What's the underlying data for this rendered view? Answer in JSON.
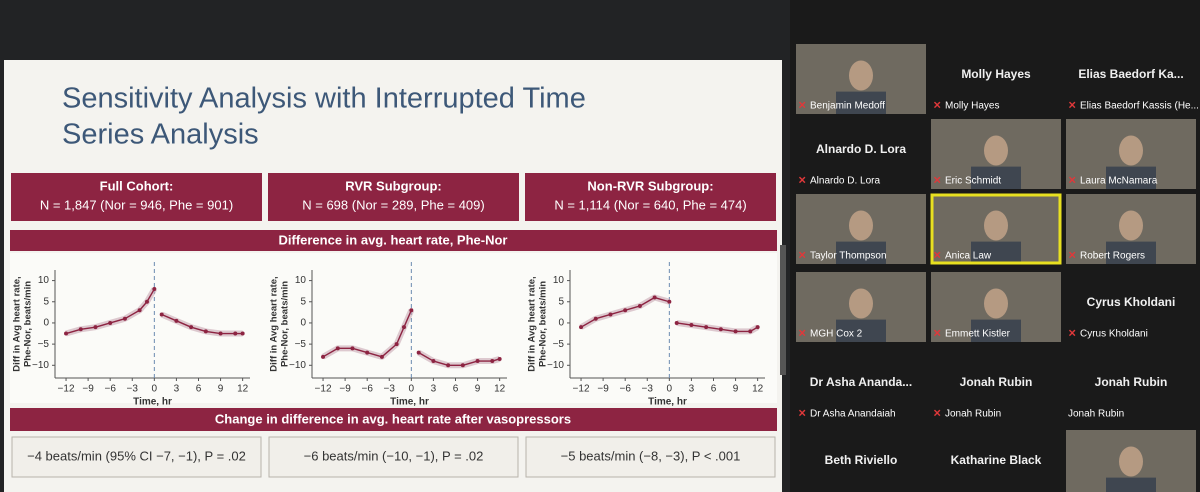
{
  "slide": {
    "title_lines": [
      "Sensitivity Analysis with Interrupted Time",
      "Series Analysis"
    ],
    "groups": [
      {
        "name": "Full Cohort:",
        "n": "N = 1,847 (Nor = 946, Phe = 901)"
      },
      {
        "name": "RVR Subgroup:",
        "n": "N = 698 (Nor = 289, Phe = 409)"
      },
      {
        "name": "Non-RVR Subgroup:",
        "n": "N = 1,114 (Nor = 640, Phe = 474)"
      }
    ],
    "difference_header": "Difference in avg. heart rate, Phe-Nor",
    "change_header": "Change in difference in avg. heart rate after vasopressors",
    "results": [
      "−4 beats/min (95% CI −7, −1), P = .02",
      "−6 beats/min (−10, −1), P = .02",
      "−5 beats/min (−8, −3), P < .001"
    ],
    "panels": [
      {
        "type": "scatter",
        "y_label": [
          "Diff in Avg heart rate,",
          "Phe-Nor, beats/min"
        ],
        "x_label": "Time, hr",
        "xlim": [
          -13.5,
          13
        ],
        "ylim": [
          -13,
          12.5
        ],
        "xticks": [
          {
            "value": -12,
            "label": "−12"
          },
          {
            "value": -9,
            "label": "−9"
          },
          {
            "value": -6,
            "label": "−6"
          },
          {
            "value": -3,
            "label": "−3"
          },
          0,
          3,
          6,
          9,
          12
        ],
        "yticks": [
          10,
          5,
          0,
          {
            "value": -5,
            "label": "−5"
          },
          {
            "value": -10,
            "label": "−10"
          }
        ],
        "pre": {
          "x": [
            -12,
            -10,
            -8,
            -6,
            -4,
            -2,
            -1,
            0
          ],
          "y": [
            -2.5,
            -1.5,
            -1,
            0,
            1,
            3,
            5,
            8
          ]
        },
        "post": {
          "x": [
            1,
            3,
            5,
            7,
            9,
            11,
            12
          ],
          "y": [
            2,
            0.5,
            -1,
            -2,
            -2.5,
            -2.5,
            -2.5
          ]
        }
      },
      {
        "type": "scatter",
        "y_label": [
          "Diff in Avg heart rate,",
          "Phe-Nor, beats/min"
        ],
        "x_label": "Time, hr",
        "xlim": [
          -13.5,
          13
        ],
        "ylim": [
          -13,
          12.5
        ],
        "xticks": [
          {
            "value": -12,
            "label": "−12"
          },
          {
            "value": -9,
            "label": "−9"
          },
          {
            "value": -6,
            "label": "−6"
          },
          {
            "value": -3,
            "label": "−3"
          },
          0,
          3,
          6,
          9,
          12
        ],
        "yticks": [
          10,
          5,
          0,
          {
            "value": -5,
            "label": "−5"
          },
          {
            "value": -10,
            "label": "−10"
          }
        ],
        "pre": {
          "x": [
            -12,
            -10,
            -8,
            -6,
            -4,
            -2,
            -1,
            0
          ],
          "y": [
            -8,
            -6,
            -6,
            -7,
            -8,
            -5,
            -1,
            3
          ]
        },
        "post": {
          "x": [
            1,
            3,
            5,
            7,
            9,
            11,
            12
          ],
          "y": [
            -7,
            -9,
            -10,
            -10,
            -9,
            -9,
            -8.5
          ]
        }
      },
      {
        "type": "scatter",
        "y_label": [
          "Diff in Avg heart rate,",
          "Phe-Nor, beats/min"
        ],
        "x_label": "Time, hr",
        "xlim": [
          -13.5,
          13
        ],
        "ylim": [
          -13,
          12.5
        ],
        "xticks": [
          {
            "value": -12,
            "label": "−12"
          },
          {
            "value": -9,
            "label": "−9"
          },
          {
            "value": -6,
            "label": "−6"
          },
          {
            "value": -3,
            "label": "−3"
          },
          0,
          3,
          6,
          9,
          12
        ],
        "yticks": [
          10,
          5,
          0,
          {
            "value": -5,
            "label": "−5"
          },
          {
            "value": -10,
            "label": "−10"
          }
        ],
        "pre": {
          "x": [
            -12,
            -10,
            -8,
            -6,
            -4,
            -2,
            0
          ],
          "y": [
            -1,
            1,
            2,
            3,
            4,
            6,
            5
          ]
        },
        "post": {
          "x": [
            1,
            3,
            5,
            7,
            9,
            11,
            12
          ],
          "y": [
            0,
            -0.5,
            -1,
            -1.5,
            -2,
            -2,
            -1
          ]
        }
      }
    ]
  },
  "participants": [
    {
      "label": "Benjamin Medoff",
      "video": true
    },
    {
      "big": "Molly Hayes",
      "label": "Molly Hayes"
    },
    {
      "big": "Elias Baedorf Ka...",
      "label": "Elias Baedorf Kassis (He..."
    },
    {
      "big": "Alnardo D. Lora",
      "label": "Alnardo D. Lora"
    },
    {
      "label": "Eric Schmidt",
      "video": true
    },
    {
      "label": "Laura McNamara",
      "video": true
    },
    {
      "label": "Taylor Thompson",
      "video": true
    },
    {
      "label": "Anica Law",
      "video": true,
      "speaking": true
    },
    {
      "label": "Robert Rogers",
      "video": true
    },
    {
      "label": "MGH Cox 2",
      "video": true
    },
    {
      "label": "Emmett Kistler",
      "video": true
    },
    {
      "big": "Cyrus Kholdani",
      "label": "Cyrus Kholdani"
    },
    {
      "big": "Dr Asha Ananda...",
      "label": "Dr Asha Anandaiah"
    },
    {
      "big": "Jonah Rubin",
      "label": "Jonah Rubin"
    },
    {
      "big": "Jonah Rubin",
      "label": "Jonah Rubin",
      "unmuted": true
    },
    {
      "big": "Beth Riviello"
    },
    {
      "big": "Katharine Black"
    },
    {
      "video": true
    }
  ]
}
